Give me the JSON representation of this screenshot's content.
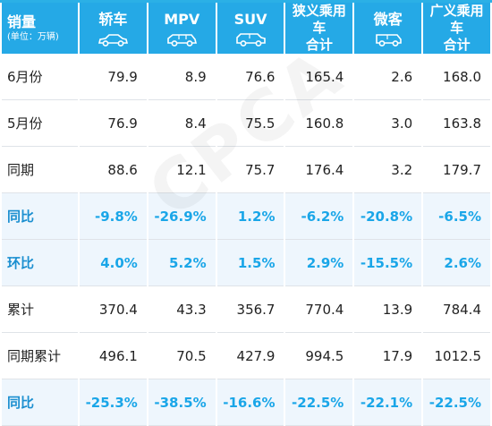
{
  "header": {
    "corner_title": "销量",
    "corner_unit": "(单位：万辆)",
    "columns": [
      {
        "label": "轿车",
        "icon": "sedan-icon"
      },
      {
        "label": "MPV",
        "icon": "mpv-icon"
      },
      {
        "label": "SUV",
        "icon": "suv-icon"
      },
      {
        "label_line1": "狭义乘用车",
        "label_line2": "合计"
      },
      {
        "label": "微客",
        "icon": "minivan-icon"
      },
      {
        "label_line1": "广义乘用车",
        "label_line2": "合计"
      }
    ]
  },
  "rows": [
    {
      "label": "6月份",
      "values": [
        "79.9",
        "8.9",
        "76.6",
        "165.4",
        "2.6",
        "168.0"
      ]
    },
    {
      "label": "5月份",
      "values": [
        "76.9",
        "8.4",
        "75.5",
        "160.8",
        "3.0",
        "163.8"
      ]
    },
    {
      "label": "同期",
      "values": [
        "88.6",
        "12.1",
        "75.7",
        "176.4",
        "3.2",
        "179.7"
      ]
    },
    {
      "label": "同比",
      "values": [
        "-9.8%",
        "-26.9%",
        "1.2%",
        "-6.2%",
        "-20.8%",
        "-6.5%"
      ]
    },
    {
      "label": "环比",
      "values": [
        "4.0%",
        "5.2%",
        "1.5%",
        "2.9%",
        "-15.5%",
        "2.6%"
      ]
    },
    {
      "label": "累计",
      "values": [
        "370.4",
        "43.3",
        "356.7",
        "770.4",
        "13.9",
        "784.4"
      ]
    },
    {
      "label": "同期累计",
      "values": [
        "496.1",
        "70.5",
        "427.9",
        "994.5",
        "17.9",
        "1012.5"
      ]
    },
    {
      "label": "同比",
      "values": [
        "-25.3%",
        "-38.5%",
        "-16.6%",
        "-22.5%",
        "-22.1%",
        "-22.5%"
      ]
    }
  ],
  "watermark": "CPCA",
  "colors": {
    "header_bg": "#25a9e6",
    "ratio_bg": "#eef6fd",
    "ratio_text": "#1aa6e8"
  }
}
